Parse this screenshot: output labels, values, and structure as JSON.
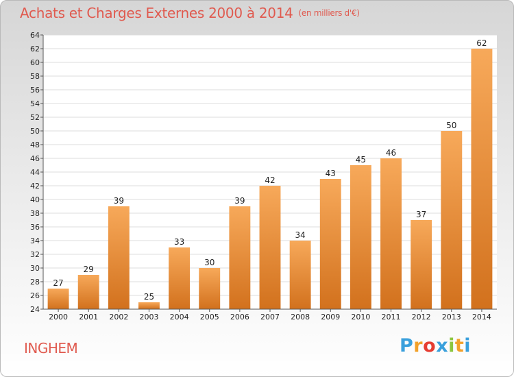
{
  "header": {
    "title": "Achats et Charges Externes 2000 à 2014",
    "unit": "(en milliers d'€)"
  },
  "footer": {
    "commune": "INGHEM",
    "logo_letters": [
      "P",
      "r",
      "o",
      "x",
      "i",
      "t",
      "i"
    ],
    "logo_colors": [
      "#3aa0dc",
      "#f2a12a",
      "#e63d32",
      "#3aa0dc",
      "#8cc63f",
      "#f2a12a",
      "#3aa0dc"
    ]
  },
  "colors": {
    "bar_top": "#f7a95a",
    "bar_bottom": "#d2711d",
    "title": "#e05a4f"
  },
  "chart_data": {
    "type": "bar",
    "title": "Achats et Charges Externes 2000 à 2014",
    "subtitle": "(en milliers d'€)",
    "xlabel": "",
    "ylabel": "",
    "categories": [
      "2000",
      "2001",
      "2002",
      "2003",
      "2004",
      "2005",
      "2006",
      "2007",
      "2008",
      "2009",
      "2010",
      "2011",
      "2012",
      "2013",
      "2014"
    ],
    "values": [
      27,
      29,
      39,
      25,
      33,
      30,
      39,
      42,
      34,
      43,
      45,
      46,
      37,
      50,
      62
    ],
    "ylim": [
      24,
      64
    ],
    "yticks": [
      24,
      26,
      28,
      30,
      32,
      34,
      36,
      38,
      40,
      42,
      44,
      46,
      48,
      50,
      52,
      54,
      56,
      58,
      60,
      62,
      64
    ],
    "grid": true,
    "data_labels": true
  }
}
